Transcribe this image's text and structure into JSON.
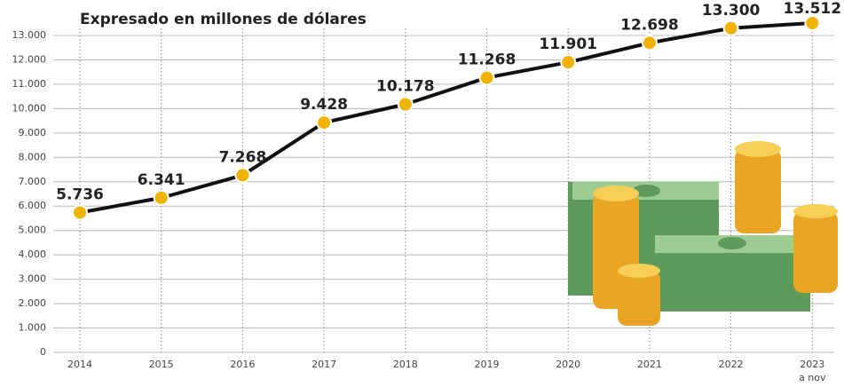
{
  "chart_data": {
    "type": "line",
    "title": "Expresado en millones de dólares",
    "categories": [
      "2014",
      "2015",
      "2016",
      "2017",
      "2018",
      "2019",
      "2020",
      "2021",
      "2022",
      "2023"
    ],
    "annotations": [
      "a nov"
    ],
    "values": [
      5736,
      6341,
      7268,
      9428,
      10178,
      11268,
      11901,
      12698,
      13300,
      13512
    ],
    "value_labels": [
      "5.736",
      "6.341",
      "7.268",
      "9.428",
      "10.178",
      "11.268",
      "11.901",
      "12.698",
      "13.300",
      "13.512"
    ],
    "color": "#111111",
    "marker_color": "#f0b400",
    "ylim": [
      0,
      13000
    ],
    "yticks": [
      0,
      {
        "value": 1000,
        "label": "1.000"
      },
      {
        "value": 2000,
        "label": "2.000"
      },
      {
        "value": 3000,
        "label": "3.000"
      },
      {
        "value": 4000,
        "label": "4.000"
      },
      {
        "value": 5000,
        "label": "5.000"
      },
      {
        "value": 6000,
        "label": "6.000"
      },
      {
        "value": 7000,
        "label": "7.000"
      },
      {
        "value": 8000,
        "label": "8.000"
      },
      {
        "value": 9000,
        "label": "9.000"
      },
      {
        "value": 10000,
        "label": "10.000"
      },
      {
        "value": 11000,
        "label": "11.000"
      },
      {
        "value": 12000,
        "label": "12.000"
      },
      {
        "value": 13000,
        "label": "13.000"
      }
    ],
    "grid": true
  }
}
